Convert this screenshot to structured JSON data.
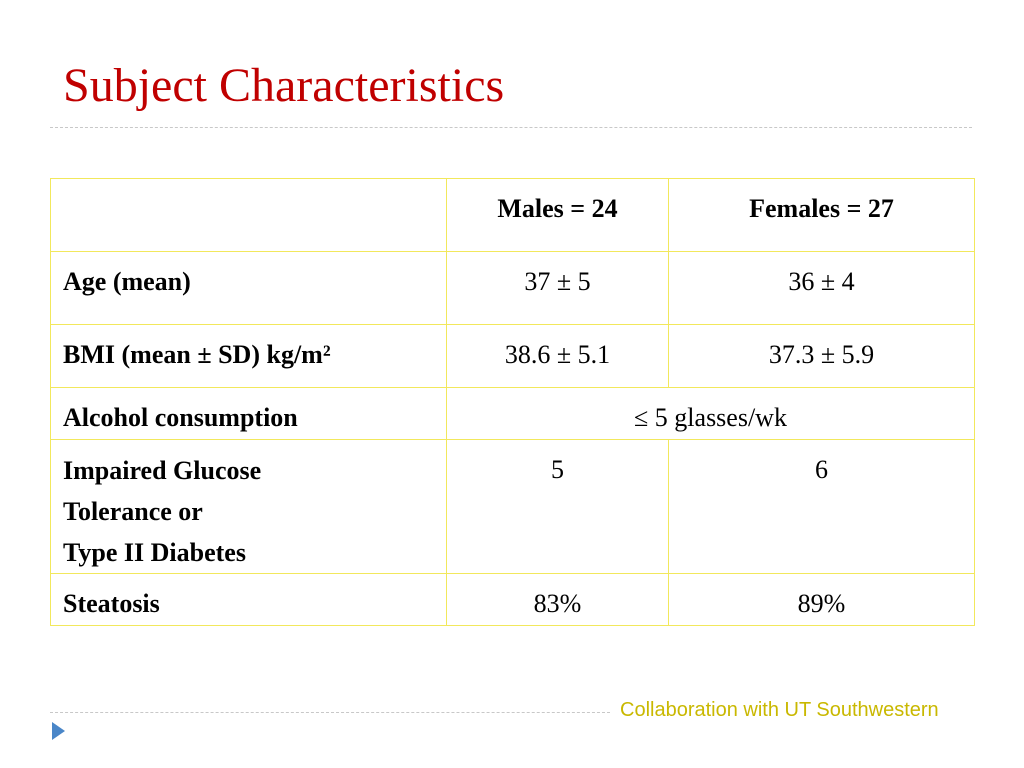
{
  "slide": {
    "title": "Subject Characteristics",
    "footer": "Collaboration with UT Southwestern"
  },
  "table": {
    "header": [
      "",
      "Males = 24",
      "Females = 27"
    ],
    "rows": {
      "age": {
        "label": "Age (mean)",
        "males": "37 ± 5",
        "females": "36 ± 4"
      },
      "bmi": {
        "label": "BMI (mean ± SD) kg/m²",
        "males": "38.6 ± 5.1",
        "females": "37.3 ± 5.9"
      },
      "alcohol": {
        "label": "Alcohol consumption",
        "value": "≤ 5 glasses/wk"
      },
      "glucose": {
        "label_lines": [
          "Impaired Glucose",
          "Tolerance or",
          "Type II Diabetes"
        ],
        "males": "5",
        "females": "6"
      },
      "steatosis": {
        "label": "Steatosis",
        "males": "83%",
        "females": "89%"
      }
    }
  },
  "colors": {
    "title": "#c00000",
    "table_border": "#f2e85c",
    "footer_text": "#c9b800",
    "bullet": "#4a86c8"
  },
  "icons": {
    "bullet": "triangle-bullet-icon"
  }
}
